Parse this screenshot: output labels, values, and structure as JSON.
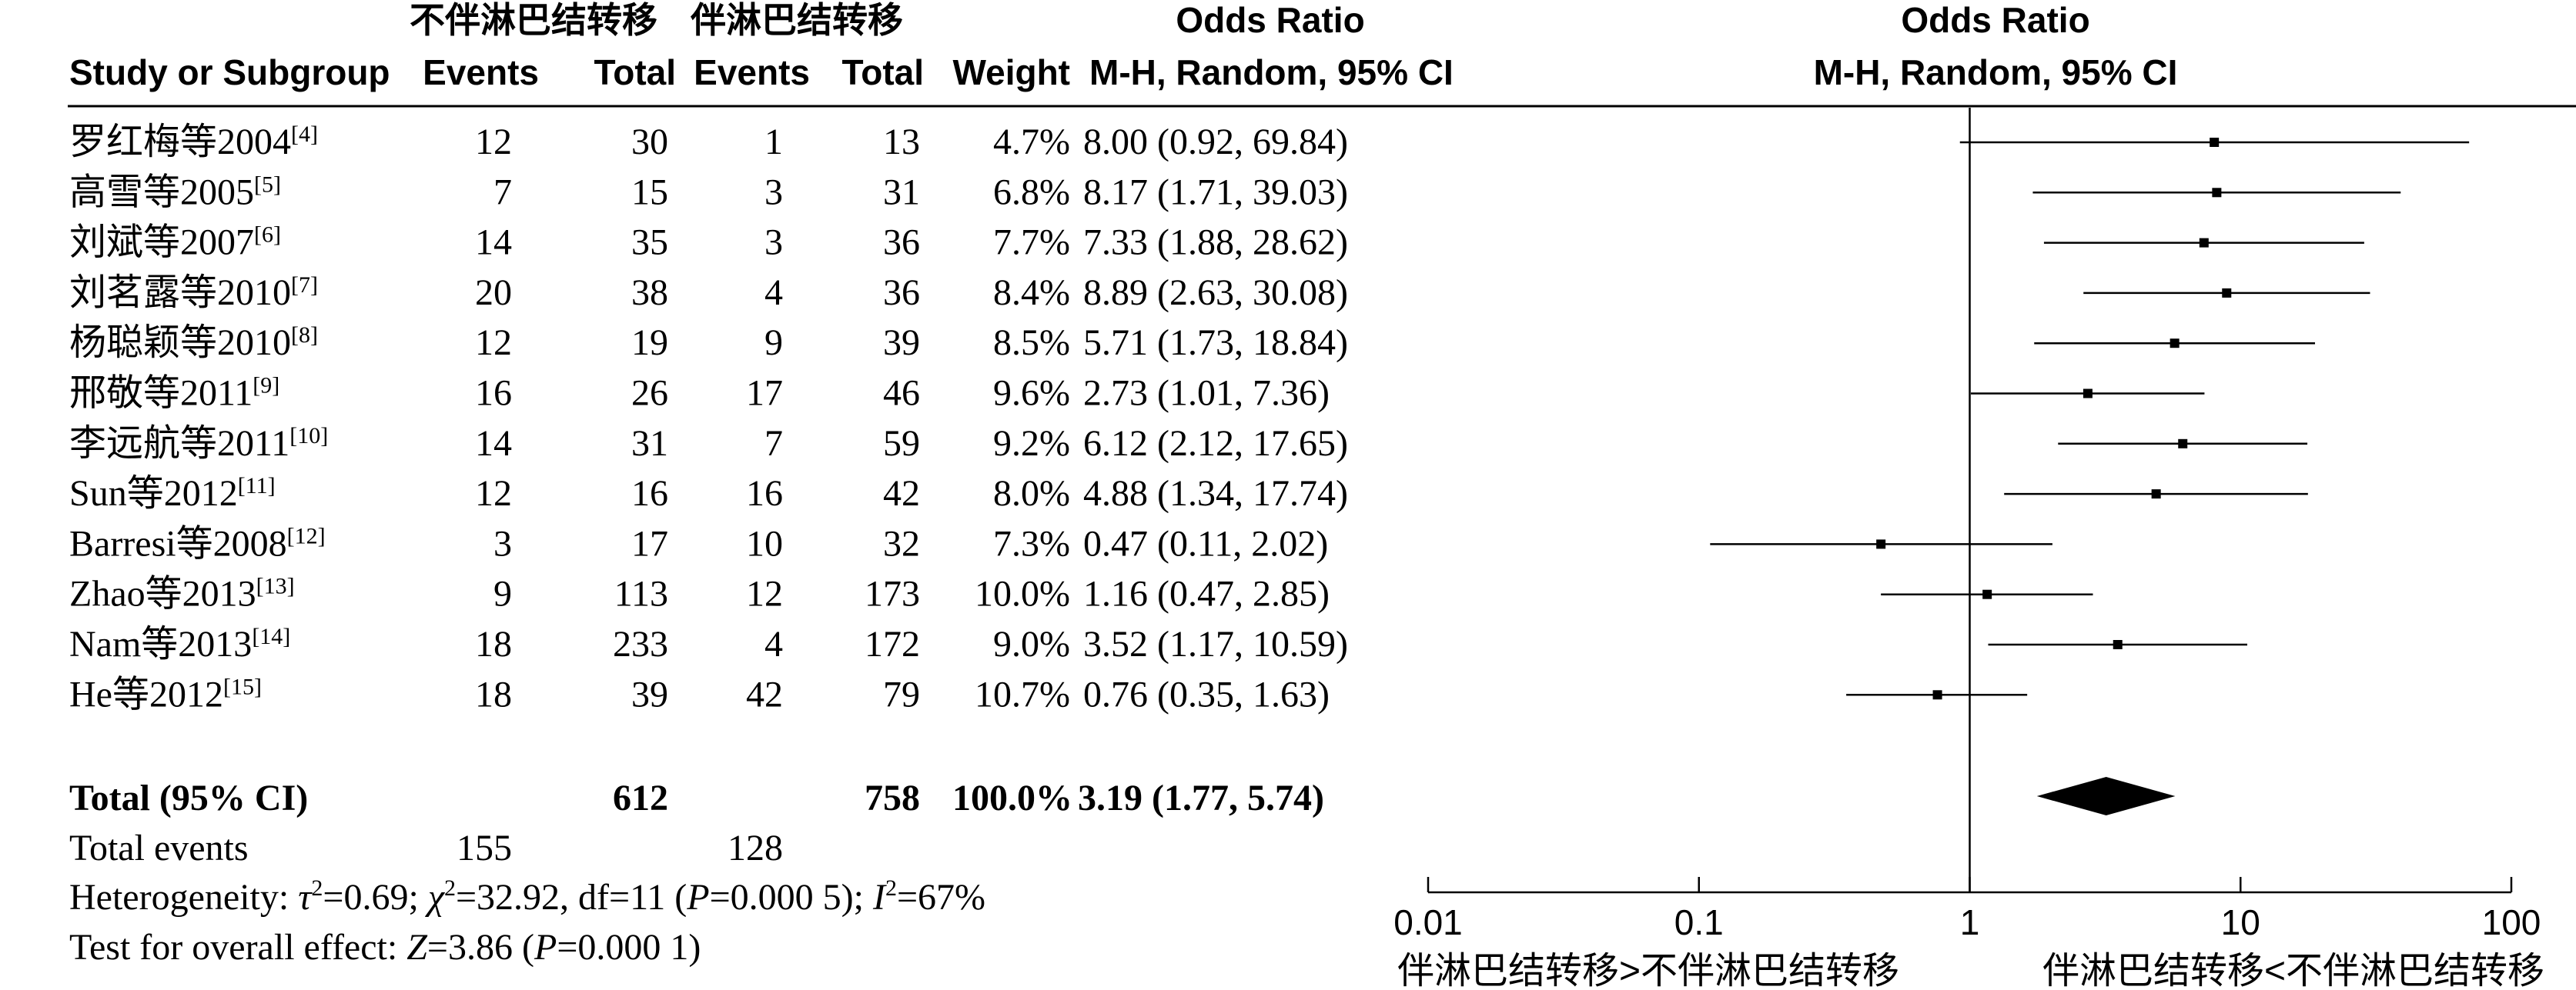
{
  "header": {
    "group1": "不伴淋巴结转移",
    "group2": "伴淋巴结转移",
    "study_col": "Study or Subgroup",
    "events": "Events",
    "total": "Total",
    "weight": "Weight",
    "or_title": "Odds Ratio",
    "or_method": "M-H, Random, 95% CI",
    "plot_title": "Odds Ratio",
    "plot_method": "M-H, Random, 95% CI"
  },
  "chart_data": {
    "type": "forest",
    "x_scale": "log",
    "xlim": [
      0.01,
      100
    ],
    "reference_line": 1,
    "ticks": [
      "0.01",
      "0.1",
      "1",
      "10",
      "100"
    ],
    "xlabel_left": "伴淋巴结转移>不伴淋巴结转移",
    "xlabel_right": "伴淋巴结转移<不伴淋巴结转移",
    "studies": [
      {
        "name": "罗红梅等2004",
        "ref": "[4]",
        "e1": "12",
        "t1": "30",
        "e2": "1",
        "t2": "13",
        "weight": "4.7%",
        "ci_text": "8.00 (0.92, 69.84)",
        "or": 8.0,
        "lo": 0.92,
        "hi": 69.84
      },
      {
        "name": "高雪等2005",
        "ref": "[5]",
        "e1": "7",
        "t1": "15",
        "e2": "3",
        "t2": "31",
        "weight": "6.8%",
        "ci_text": "8.17 (1.71, 39.03)",
        "or": 8.17,
        "lo": 1.71,
        "hi": 39.03
      },
      {
        "name": "刘斌等2007",
        "ref": "[6]",
        "e1": "14",
        "t1": "35",
        "e2": "3",
        "t2": "36",
        "weight": "7.7%",
        "ci_text": "7.33 (1.88, 28.62)",
        "or": 7.33,
        "lo": 1.88,
        "hi": 28.62
      },
      {
        "name": "刘茗露等2010",
        "ref": "[7]",
        "e1": "20",
        "t1": "38",
        "e2": "4",
        "t2": "36",
        "weight": "8.4%",
        "ci_text": "8.89 (2.63, 30.08)",
        "or": 8.89,
        "lo": 2.63,
        "hi": 30.08
      },
      {
        "name": "杨聪颖等2010",
        "ref": "[8]",
        "e1": "12",
        "t1": "19",
        "e2": "9",
        "t2": "39",
        "weight": "8.5%",
        "ci_text": "5.71 (1.73, 18.84)",
        "or": 5.71,
        "lo": 1.73,
        "hi": 18.84
      },
      {
        "name": "邢敬等2011",
        "ref": "[9]",
        "e1": "16",
        "t1": "26",
        "e2": "17",
        "t2": "46",
        "weight": "9.6%",
        "ci_text": "2.73 (1.01, 7.36)",
        "or": 2.73,
        "lo": 1.01,
        "hi": 7.36
      },
      {
        "name": "李远航等2011",
        "ref": "[10]",
        "e1": "14",
        "t1": "31",
        "e2": "7",
        "t2": "59",
        "weight": "9.2%",
        "ci_text": "6.12 (2.12, 17.65)",
        "or": 6.12,
        "lo": 2.12,
        "hi": 17.65
      },
      {
        "name": "Sun等2012",
        "ref": "[11]",
        "e1": "12",
        "t1": "16",
        "e2": "16",
        "t2": "42",
        "weight": "8.0%",
        "ci_text": "4.88 (1.34, 17.74)",
        "or": 4.88,
        "lo": 1.34,
        "hi": 17.74
      },
      {
        "name": "Barresi等2008",
        "ref": "[12]",
        "e1": "3",
        "t1": "17",
        "e2": "10",
        "t2": "32",
        "weight": "7.3%",
        "ci_text": "0.47 (0.11, 2.02)",
        "or": 0.47,
        "lo": 0.11,
        "hi": 2.02
      },
      {
        "name": "Zhao等2013",
        "ref": "[13]",
        "e1": "9",
        "t1": "113",
        "e2": "12",
        "t2": "173",
        "weight": "10.0%",
        "ci_text": "1.16 (0.47, 2.85)",
        "or": 1.16,
        "lo": 0.47,
        "hi": 2.85
      },
      {
        "name": "Nam等2013",
        "ref": "[14]",
        "e1": "18",
        "t1": "233",
        "e2": "4",
        "t2": "172",
        "weight": "9.0%",
        "ci_text": "3.52 (1.17, 10.59)",
        "or": 3.52,
        "lo": 1.17,
        "hi": 10.59
      },
      {
        "name": "He等2012",
        "ref": "[15]",
        "e1": "18",
        "t1": "39",
        "e2": "42",
        "t2": "79",
        "weight": "10.7%",
        "ci_text": "0.76 (0.35, 1.63)",
        "or": 0.76,
        "lo": 0.35,
        "hi": 1.63
      }
    ],
    "total": {
      "label": "Total (95% CI)",
      "t1": "612",
      "t2": "758",
      "weight": "100.0%",
      "ci_text": "3.19 (1.77, 5.74)",
      "or": 3.19,
      "lo": 1.77,
      "hi": 5.74
    },
    "total_events": {
      "label": "Total events",
      "e1": "155",
      "e2": "128"
    },
    "heterogeneity": {
      "prefix": "Heterogeneity: ",
      "tau_sym": "τ",
      "tau_rest": "=0.69; ",
      "chi_sym": "χ",
      "chi_rest": "=32.92, df=11 (",
      "p": "P",
      "p_rest": "=0.000 5); ",
      "i_sym": "I",
      "i_rest": "=67%"
    },
    "overall": {
      "prefix": "Test for overall effect: ",
      "z": "Z",
      "z_rest": "=3.86 (",
      "p": "P",
      "p_rest": "=0.000 1)"
    }
  }
}
